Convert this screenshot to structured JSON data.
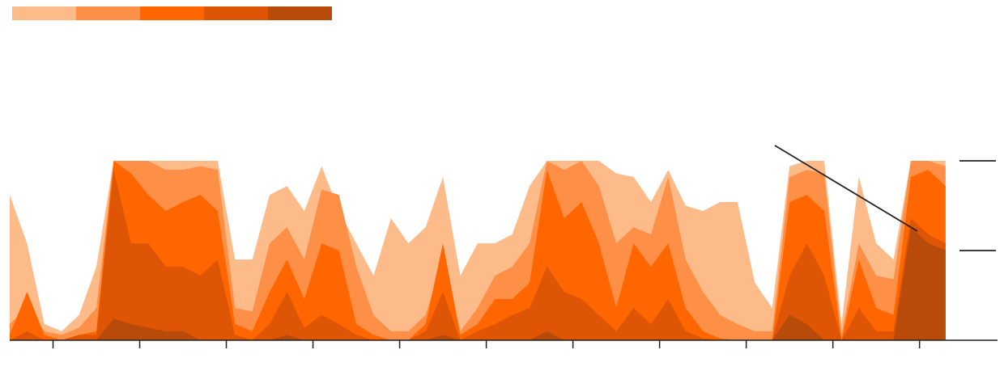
{
  "chart_data": {
    "type": "area",
    "x": [
      0,
      2,
      4,
      6,
      8,
      10,
      12,
      14,
      16,
      18,
      20,
      22,
      24,
      26,
      28,
      30,
      32,
      34,
      36,
      38,
      40,
      42,
      44,
      46,
      48,
      50,
      52,
      54,
      56,
      58,
      60,
      62,
      64,
      66,
      68,
      70,
      72,
      74,
      76,
      78,
      80,
      82,
      84,
      86,
      88,
      90,
      92,
      94,
      96,
      98,
      100,
      102,
      104,
      106,
      108
    ],
    "xlim": [
      0,
      114
    ],
    "xticks": [
      5,
      15,
      25,
      35,
      45,
      55,
      65,
      75,
      85,
      95,
      105
    ],
    "ylim": [
      0,
      100
    ],
    "yticks": [
      50,
      100
    ],
    "series": [
      {
        "color": "#fdbb8a",
        "values": [
          81,
          54,
          9,
          5,
          14,
          41,
          100,
          100,
          100,
          100,
          100,
          100,
          100,
          45,
          45,
          81,
          86,
          72,
          97,
          72,
          54,
          36,
          68,
          54,
          63,
          91,
          36,
          54,
          54,
          59,
          86,
          100,
          100,
          100,
          100,
          93,
          91,
          77,
          95,
          75,
          72,
          77,
          77,
          32,
          18,
          97,
          100,
          100,
          9,
          91,
          54,
          45,
          100,
          100,
          100
        ]
      },
      {
        "color": "#fd8f47",
        "values": [
          9,
          18,
          5,
          3,
          7,
          18,
          100,
          100,
          100,
          95,
          95,
          97,
          95,
          18,
          16,
          54,
          63,
          45,
          84,
          81,
          41,
          14,
          5,
          5,
          14,
          45,
          5,
          18,
          36,
          41,
          54,
          100,
          95,
          100,
          86,
          54,
          63,
          59,
          91,
          45,
          27,
          14,
          9,
          5,
          5,
          91,
          95,
          93,
          3,
          54,
          36,
          34,
          100,
          100,
          97
        ]
      },
      {
        "color": "#ff6600",
        "values": [
          3,
          27,
          3,
          0,
          3,
          5,
          100,
          93,
          81,
          72,
          77,
          81,
          72,
          9,
          5,
          27,
          45,
          23,
          54,
          50,
          9,
          3,
          0,
          0,
          9,
          54,
          3,
          9,
          23,
          23,
          32,
          95,
          68,
          77,
          54,
          18,
          54,
          41,
          54,
          18,
          5,
          1,
          0,
          0,
          0,
          77,
          81,
          72,
          0,
          45,
          18,
          14,
          91,
          95,
          86
        ]
      },
      {
        "color": "#dd5505",
        "values": [
          0,
          5,
          0,
          0,
          3,
          3,
          95,
          54,
          54,
          41,
          41,
          36,
          45,
          3,
          0,
          9,
          27,
          7,
          14,
          9,
          3,
          0,
          0,
          0,
          5,
          27,
          0,
          5,
          9,
          14,
          18,
          41,
          27,
          23,
          14,
          5,
          18,
          9,
          23,
          5,
          1,
          0,
          0,
          0,
          0,
          36,
          54,
          36,
          0,
          18,
          5,
          5,
          68,
          59,
          54
        ]
      },
      {
        "color": "#b84a0a",
        "values": [
          0,
          0,
          0,
          0,
          0,
          0,
          12,
          9,
          7,
          5,
          5,
          0,
          0,
          0,
          0,
          0,
          3,
          0,
          0,
          0,
          0,
          0,
          0,
          0,
          0,
          3,
          0,
          0,
          0,
          0,
          0,
          5,
          0,
          0,
          0,
          0,
          0,
          0,
          0,
          0,
          0,
          0,
          0,
          0,
          0,
          14,
          9,
          0,
          0,
          0,
          0,
          0,
          63,
          54,
          50
        ]
      }
    ]
  }
}
